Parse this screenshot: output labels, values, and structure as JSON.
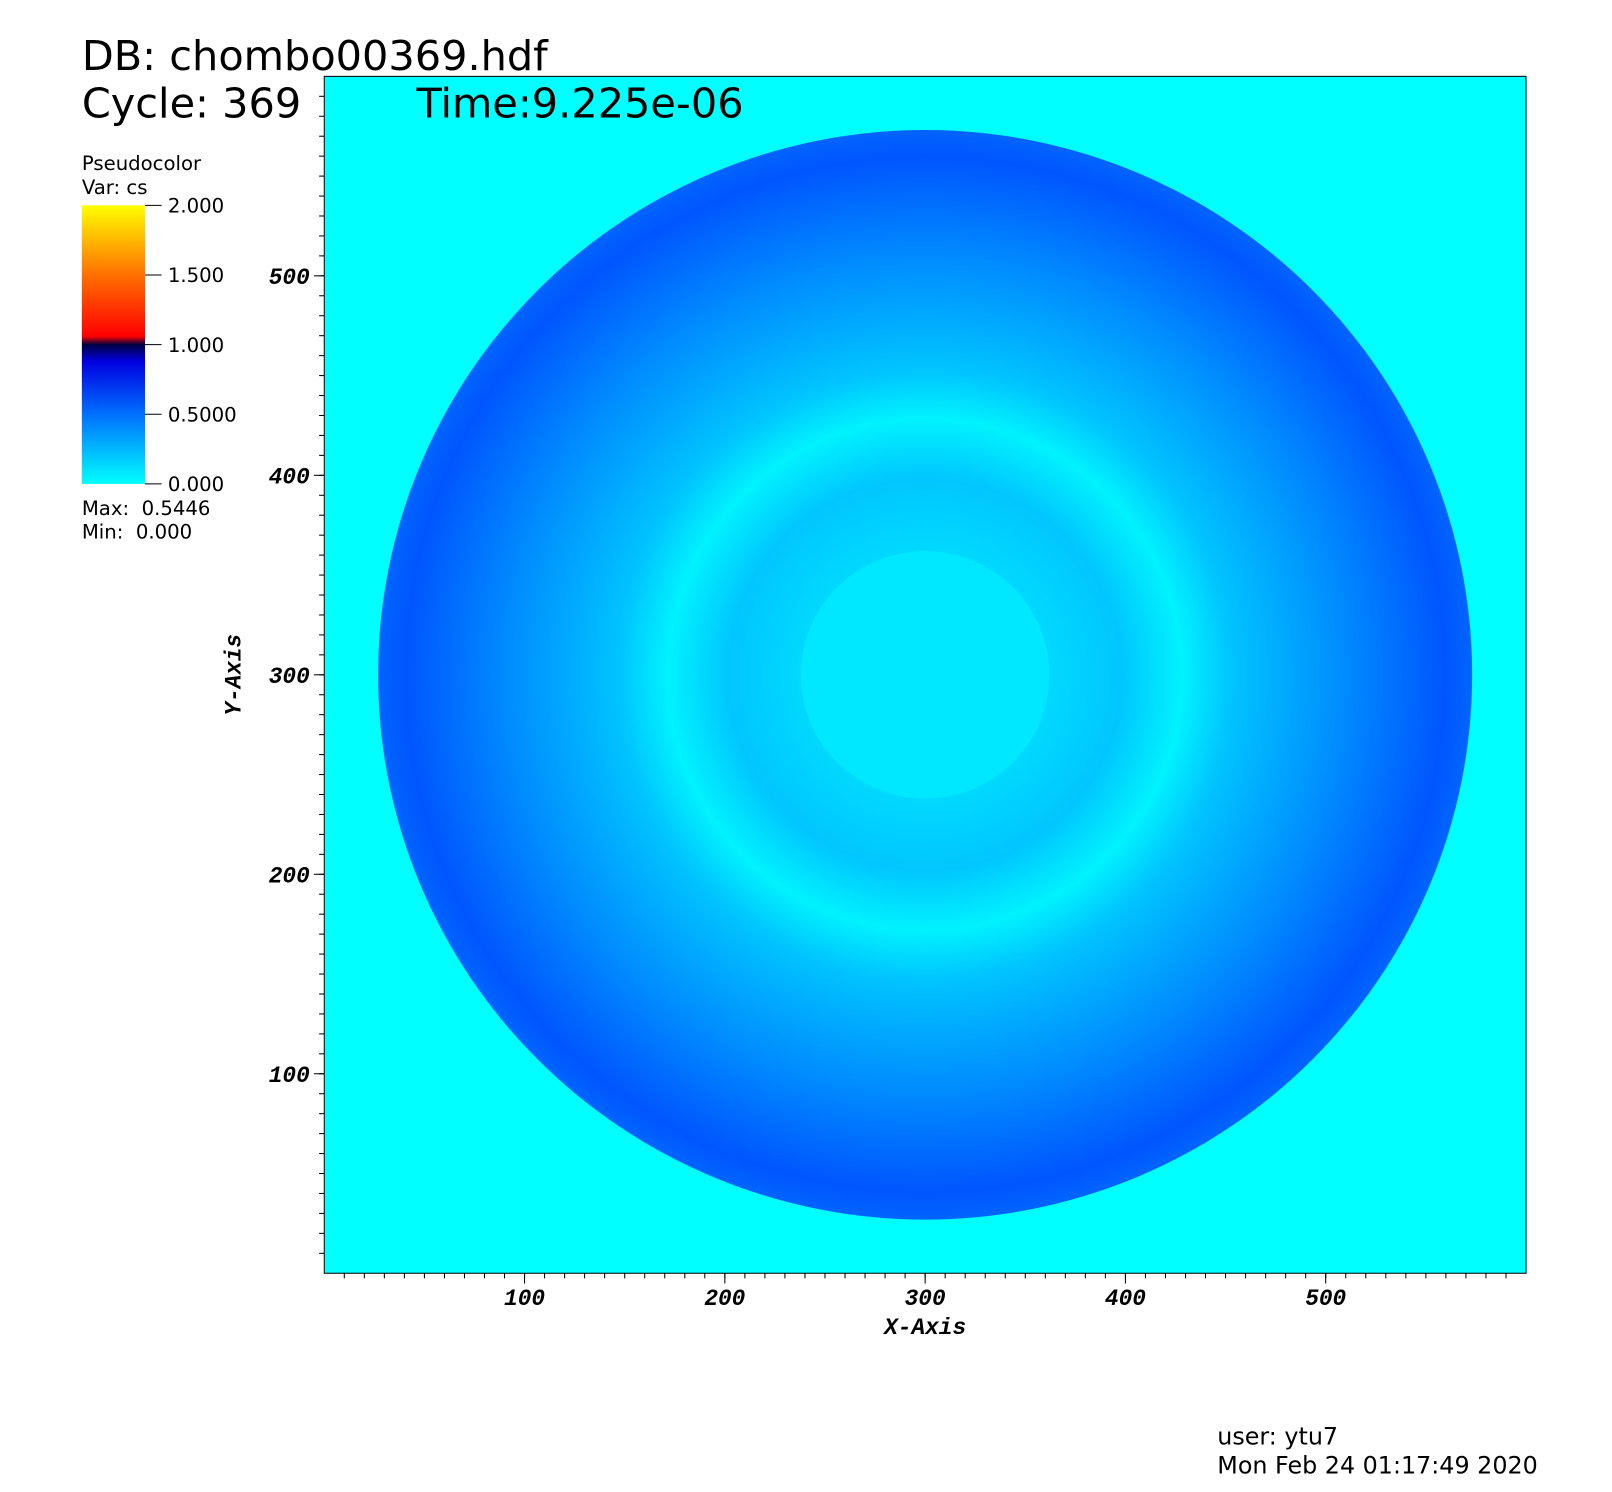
{
  "chart_data": {
    "type": "pseudocolor",
    "title": "DB: chombo00369.hdf",
    "cycle": "Cycle: 369",
    "time": "Time:9.225e-06",
    "legend_title": "Pseudocolor",
    "variable": "Var: cs",
    "max": "Max:  0.5446",
    "min": "Min:  0.000",
    "x_label": "X-Axis",
    "y_label": "Y-Axis",
    "xlim": [
      0,
      600
    ],
    "ylim": [
      0,
      600
    ],
    "xticks": [
      100,
      200,
      300,
      400,
      500
    ],
    "yticks": [
      100,
      200,
      300,
      400,
      500
    ],
    "colorbar_lim": [
      0,
      2
    ],
    "colorbar_ticks": [
      {
        "value": 2,
        "label": "2.000"
      },
      {
        "value": 1.5,
        "label": "1.500"
      },
      {
        "value": 1,
        "label": "1.000"
      },
      {
        "value": 0.5,
        "label": "0.5000"
      },
      {
        "value": 0,
        "label": "0.000"
      }
    ],
    "user": "user: ytu7",
    "timestamp": "Mon Feb 24 01:17:49 2020"
  }
}
